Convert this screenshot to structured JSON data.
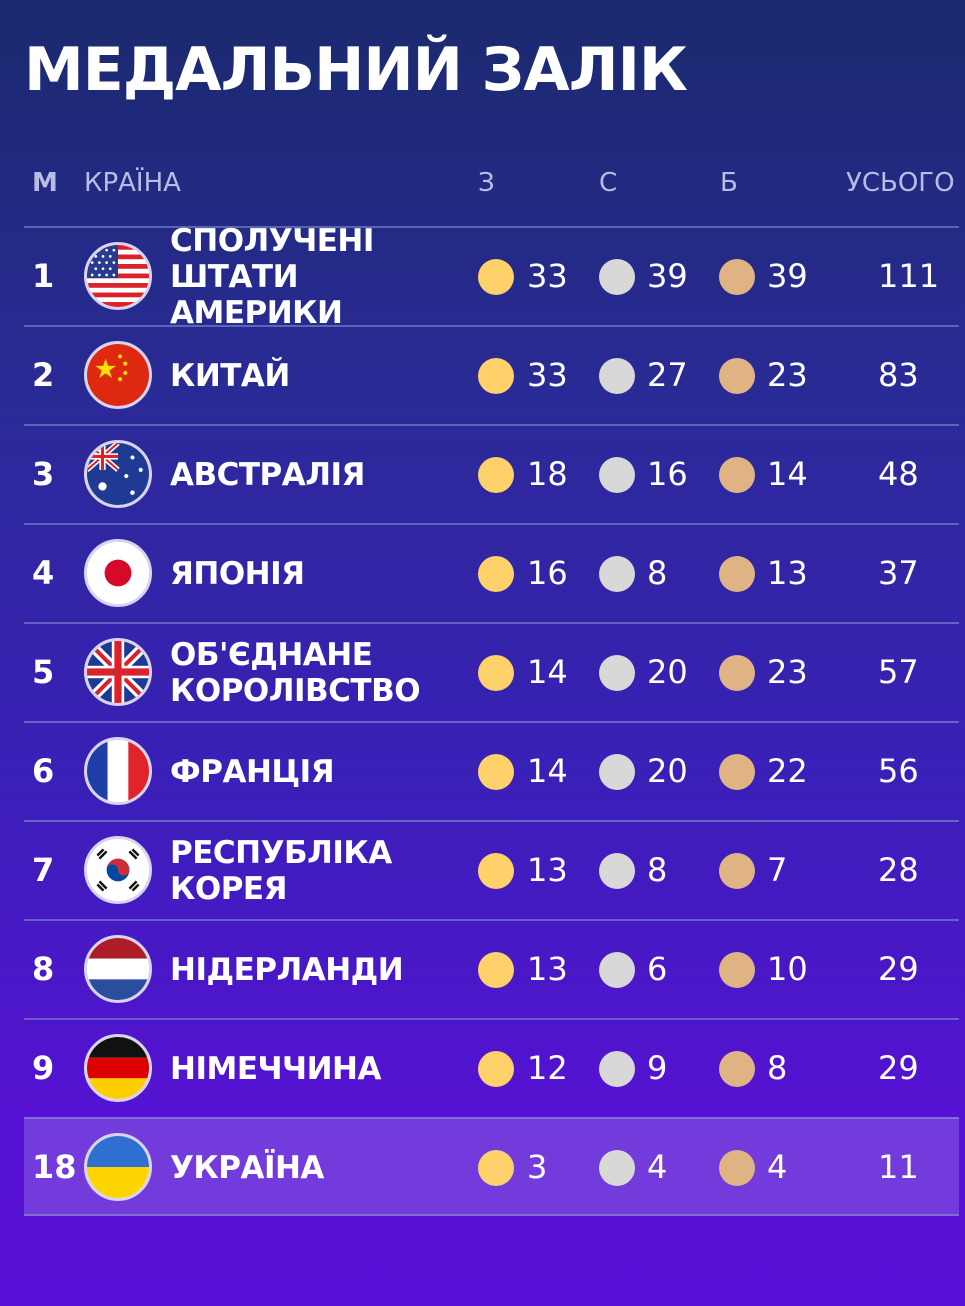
{
  "title": "МЕДАЛЬНИЙ ЗАЛІК",
  "header": {
    "rank": "М",
    "country": "КРАЇНА",
    "gold": "З",
    "silver": "С",
    "bronze": "Б",
    "total": "УСЬОГО"
  },
  "colors": {
    "gold": "#ffd16a",
    "silver": "#d8d8d8",
    "bronze": "#dfb384",
    "highlight_row": "#7a55d8"
  },
  "rows": [
    {
      "rank": "1",
      "country": "СПОЛУЧЕНІ\nШТАТИ АМЕРИКИ",
      "flag": "usa-flag-icon",
      "gold": "33",
      "silver": "39",
      "bronze": "39",
      "total": "111"
    },
    {
      "rank": "2",
      "country": "КИТАЙ",
      "flag": "china-flag-icon",
      "gold": "33",
      "silver": "27",
      "bronze": "23",
      "total": "83"
    },
    {
      "rank": "3",
      "country": "АВСТРАЛІЯ",
      "flag": "australia-flag-icon",
      "gold": "18",
      "silver": "16",
      "bronze": "14",
      "total": "48"
    },
    {
      "rank": "4",
      "country": "ЯПОНІЯ",
      "flag": "japan-flag-icon",
      "gold": "16",
      "silver": "8",
      "bronze": "13",
      "total": "37"
    },
    {
      "rank": "5",
      "country": "ОБ'ЄДНАНЕ\nКОРОЛІВСТВО",
      "flag": "uk-flag-icon",
      "gold": "14",
      "silver": "20",
      "bronze": "23",
      "total": "57"
    },
    {
      "rank": "6",
      "country": "ФРАНЦІЯ",
      "flag": "france-flag-icon",
      "gold": "14",
      "silver": "20",
      "bronze": "22",
      "total": "56"
    },
    {
      "rank": "7",
      "country": "РЕСПУБЛІКА\nКОРЕЯ",
      "flag": "korea-flag-icon",
      "gold": "13",
      "silver": "8",
      "bronze": "7",
      "total": "28"
    },
    {
      "rank": "8",
      "country": "НІДЕРЛАНДИ",
      "flag": "netherlands-flag-icon",
      "gold": "13",
      "silver": "6",
      "bronze": "10",
      "total": "29"
    },
    {
      "rank": "9",
      "country": "НІМЕЧЧИНА",
      "flag": "germany-flag-icon",
      "gold": "12",
      "silver": "9",
      "bronze": "8",
      "total": "29"
    },
    {
      "rank": "18",
      "country": "УКРАЇНА",
      "flag": "ukraine-flag-icon",
      "gold": "3",
      "silver": "4",
      "bronze": "4",
      "total": "11",
      "highlighted": true
    }
  ]
}
